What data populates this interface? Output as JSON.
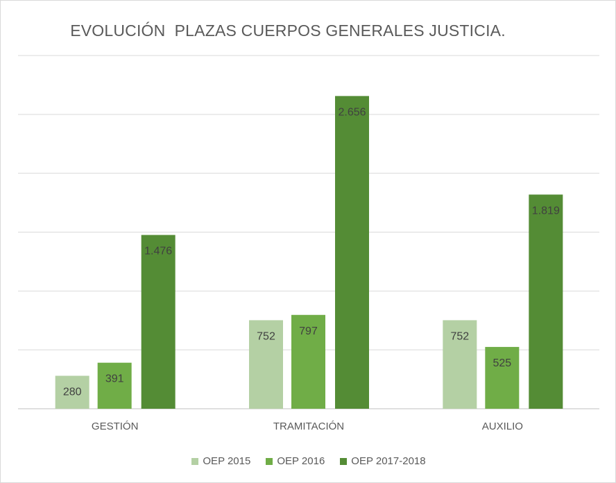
{
  "chart_data": {
    "type": "bar",
    "title": "EVOLUCIÓN  PLAZAS CUERPOS GENERALES JUSTICIA.",
    "categories": [
      "GESTIÓN",
      "TRAMITACIÓN",
      "AUXILIO"
    ],
    "series": [
      {
        "name": "OEP 2015",
        "values": [
          280,
          752,
          752
        ],
        "labels": [
          "280",
          "752",
          "752"
        ],
        "color": "#b4d0a4"
      },
      {
        "name": "OEP 2016",
        "values": [
          391,
          797,
          525
        ],
        "labels": [
          "391",
          "797",
          "525"
        ],
        "color": "#70ad47"
      },
      {
        "name": "OEP 2017-2018",
        "values": [
          1476,
          2656,
          1819
        ],
        "labels": [
          "1.476",
          "2.656",
          "1.819"
        ],
        "color": "#548c35"
      }
    ],
    "ylim": [
      0,
      3000
    ],
    "grid": true,
    "legend_position": "bottom"
  }
}
